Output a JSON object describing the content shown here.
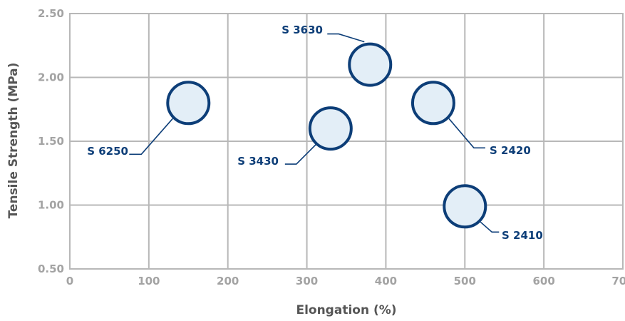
{
  "chart_data": {
    "type": "scatter",
    "title": "",
    "xlabel": "Elongation (%)",
    "ylabel": "Tensile Strength (MPa)",
    "xlim": [
      0,
      700
    ],
    "ylim": [
      0.5,
      2.5
    ],
    "xticks": [
      0,
      100,
      200,
      300,
      400,
      500,
      600,
      700
    ],
    "yticks": [
      "0.50",
      "1.00",
      "1.50",
      "2.00",
      "2.50"
    ],
    "grid": true,
    "colors": {
      "fill": "#e3eef7",
      "stroke": "#0d3e78",
      "grid": "#b8b8b8",
      "tick": "#a3a3a3",
      "axis_title": "#555555"
    },
    "points": [
      {
        "label": "S 6250",
        "x": 150,
        "y": 1.8
      },
      {
        "label": "S 3630",
        "x": 380,
        "y": 2.1
      },
      {
        "label": "S 3430",
        "x": 330,
        "y": 1.6
      },
      {
        "label": "S 2420",
        "x": 460,
        "y": 1.8
      },
      {
        "label": "S 2410",
        "x": 500,
        "y": 0.99
      }
    ]
  }
}
